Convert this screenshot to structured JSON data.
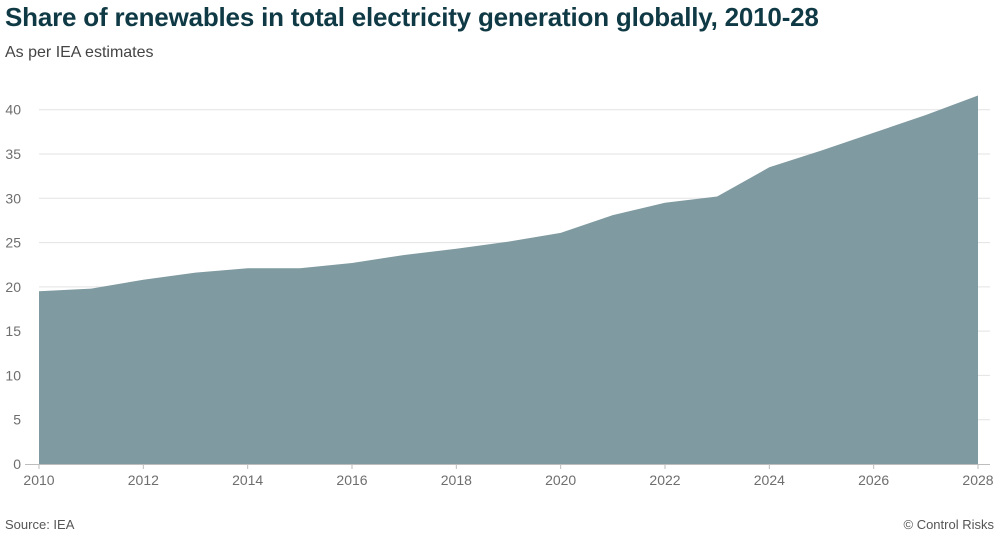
{
  "chart_data": {
    "type": "area",
    "title": "Share of renewables in total electricity generation globally, 2010-28",
    "subtitle": "As per IEA estimates",
    "x": [
      2010,
      2011,
      2012,
      2013,
      2014,
      2015,
      2016,
      2017,
      2018,
      2019,
      2020,
      2021,
      2022,
      2023,
      2024,
      2025,
      2026,
      2027,
      2028
    ],
    "values": [
      19.5,
      19.8,
      20.8,
      21.6,
      22.1,
      22.1,
      22.7,
      23.6,
      24.3,
      25.1,
      26.1,
      28.1,
      29.5,
      30.2,
      33.5,
      35.4,
      37.4,
      39.4,
      41.6
    ],
    "x_ticks": [
      2010,
      2012,
      2014,
      2016,
      2018,
      2020,
      2022,
      2024,
      2026,
      2028
    ],
    "y_ticks": [
      0,
      5,
      10,
      15,
      20,
      25,
      30,
      35,
      40
    ],
    "xlim": [
      2010,
      2028
    ],
    "ylim": [
      0,
      42
    ],
    "xlabel": "",
    "ylabel": "",
    "grid": true,
    "fill_color": "#7f9aa0",
    "grid_color": "#e3e3e3",
    "axis_color": "#bdbdbd"
  },
  "footer": {
    "source": "Source: IEA",
    "credit": "© Control Risks"
  }
}
